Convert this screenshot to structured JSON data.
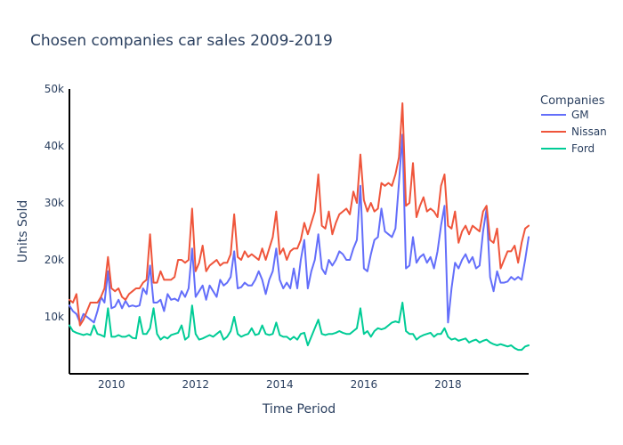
{
  "chart_data": {
    "type": "line",
    "title": "Chosen companies car sales 2009-2019",
    "xlabel": "Time Period",
    "ylabel": "Units Sold",
    "x_range": [
      "2009-01",
      "2019-12"
    ],
    "x_tick_labels": [
      "2010",
      "2012",
      "2014",
      "2016",
      "2018"
    ],
    "y_tick_labels": [
      "10k",
      "20k",
      "30k",
      "40k",
      "50k"
    ],
    "ylim": [
      0,
      50000
    ],
    "y_ticks": [
      10000,
      20000,
      30000,
      40000,
      50000
    ],
    "grid": false,
    "legend_title": "Companies",
    "legend_position": "top-right",
    "series": [
      {
        "name": "GM",
        "color": "#636efa",
        "values": [
          12000,
          11000,
          10500,
          9000,
          10500,
          10000,
          9500,
          9000,
          11000,
          13500,
          12500,
          18000,
          11500,
          11800,
          13000,
          11500,
          12800,
          11800,
          12000,
          11800,
          12000,
          15000,
          14000,
          19000,
          12500,
          12500,
          13000,
          11000,
          14000,
          13000,
          13200,
          12800,
          14500,
          13500,
          15000,
          22000,
          13500,
          14500,
          15500,
          13000,
          15500,
          14500,
          13500,
          16500,
          15500,
          16000,
          17000,
          21500,
          15000,
          15200,
          16000,
          15500,
          15500,
          16500,
          18000,
          16500,
          14000,
          16500,
          18000,
          22000,
          16500,
          15000,
          16000,
          15000,
          18500,
          15000,
          20000,
          23500,
          15000,
          18000,
          20000,
          24500,
          18500,
          17500,
          20000,
          19000,
          20000,
          21500,
          21000,
          20000,
          20000,
          22000,
          23500,
          33000,
          18500,
          18000,
          21000,
          23500,
          24000,
          29000,
          25000,
          24500,
          24000,
          25500,
          33500,
          42000,
          18500,
          19000,
          24000,
          19500,
          20500,
          21000,
          19500,
          20500,
          18500,
          21500,
          26000,
          29500,
          9000,
          15000,
          19500,
          18500,
          20000,
          21000,
          19500,
          20500,
          18500,
          19000,
          25000,
          29000,
          17000,
          14500,
          18000,
          16000,
          16000,
          16200,
          17000,
          16500,
          17000,
          16500,
          20000,
          24000
        ]
      },
      {
        "name": "Nissan",
        "color": "#ef553b",
        "values": [
          13000,
          12500,
          14000,
          8500,
          9500,
          11000,
          12500,
          12500,
          12500,
          13500,
          15000,
          20500,
          15000,
          14500,
          15000,
          13500,
          13000,
          14000,
          14500,
          15000,
          15000,
          16000,
          16500,
          24500,
          16000,
          16000,
          18000,
          16500,
          16500,
          16500,
          17000,
          20000,
          20000,
          19500,
          20000,
          29000,
          18000,
          19500,
          22500,
          18000,
          19000,
          19500,
          20000,
          19000,
          19500,
          19500,
          21000,
          28000,
          20500,
          20000,
          21500,
          20500,
          21000,
          20500,
          20000,
          22000,
          20000,
          22000,
          24000,
          28500,
          21000,
          22000,
          20000,
          21500,
          22000,
          22000,
          23500,
          26500,
          24500,
          26500,
          28500,
          35000,
          26000,
          25500,
          28500,
          24500,
          26500,
          28000,
          28500,
          29000,
          28000,
          32000,
          30000,
          38500,
          30500,
          28500,
          30000,
          28500,
          29000,
          33500,
          33000,
          33500,
          33000,
          35000,
          38000,
          47500,
          29500,
          30000,
          37000,
          27500,
          29500,
          31000,
          28500,
          29000,
          28500,
          27500,
          33000,
          35000,
          26000,
          25500,
          28500,
          23000,
          25000,
          26000,
          24500,
          26000,
          25500,
          25000,
          28500,
          29500,
          23500,
          23000,
          25500,
          18500,
          20000,
          21500,
          21500,
          22500,
          19500,
          23000,
          25500,
          26000
        ]
      },
      {
        "name": "Ford",
        "color": "#00cc96",
        "values": [
          8500,
          7500,
          7200,
          7000,
          6800,
          7000,
          6800,
          8500,
          7000,
          6800,
          6500,
          11500,
          6500,
          6500,
          6800,
          6500,
          6500,
          6800,
          6300,
          6200,
          10000,
          7000,
          7000,
          8000,
          11500,
          7000,
          6000,
          6500,
          6200,
          6800,
          7000,
          7200,
          8500,
          6000,
          6500,
          12000,
          7000,
          6000,
          6200,
          6500,
          6800,
          6500,
          7000,
          7500,
          6000,
          6500,
          7500,
          10000,
          7000,
          6500,
          6800,
          7000,
          8000,
          6800,
          7000,
          8500,
          7000,
          6800,
          7000,
          9000,
          6800,
          6500,
          6500,
          6000,
          6500,
          6000,
          7000,
          7200,
          5000,
          6500,
          8000,
          9500,
          7000,
          6800,
          7000,
          7000,
          7200,
          7500,
          7200,
          7000,
          7000,
          7500,
          8000,
          11500,
          7000,
          7500,
          6500,
          7500,
          8000,
          7800,
          8000,
          8500,
          9000,
          9200,
          9000,
          12500,
          7500,
          7000,
          7000,
          6000,
          6500,
          6800,
          7000,
          7200,
          6500,
          7000,
          7000,
          8000,
          6500,
          6000,
          6200,
          5800,
          6000,
          6200,
          5500,
          5800,
          6000,
          5500,
          5800,
          6000,
          5500,
          5200,
          5000,
          5200,
          5000,
          4800,
          5000,
          4500,
          4200,
          4200,
          4800,
          5000
        ]
      }
    ]
  }
}
